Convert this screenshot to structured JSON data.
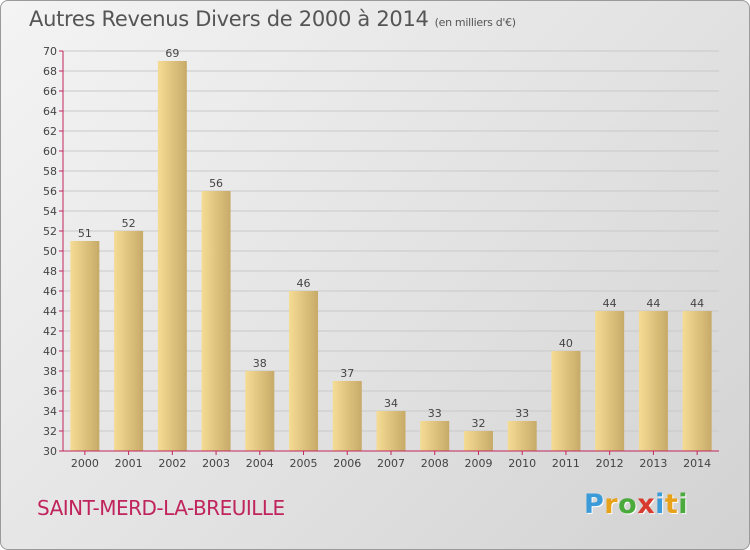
{
  "header": {
    "title": "Autres Revenus Divers de 2000 à 2014",
    "subtitle": "(en milliers d'€)"
  },
  "footer": {
    "commune": "SAINT-MERD-LA-BREUILLE",
    "logo": [
      "P",
      "r",
      "o",
      "x",
      "i",
      "t",
      "i"
    ],
    "logo_colors": [
      "#3a9bd8",
      "#e8a21a",
      "#4aaa3c",
      "#d83a2e",
      "#3a9bd8",
      "#e8a21a",
      "#4aaa3c"
    ]
  },
  "colors": {
    "bar_light": "#f5dc94",
    "bar_dark": "#c7aa68",
    "axis": "#c0245c",
    "grid": "#c9c9c9",
    "text": "#444444"
  },
  "chart_data": {
    "type": "bar",
    "categories": [
      "2000",
      "2001",
      "2002",
      "2003",
      "2004",
      "2005",
      "2006",
      "2007",
      "2008",
      "2009",
      "2010",
      "2011",
      "2012",
      "2013",
      "2014"
    ],
    "values": [
      51,
      52,
      69,
      56,
      38,
      46,
      37,
      34,
      33,
      32,
      33,
      40,
      44,
      44,
      44
    ],
    "title": "Autres Revenus Divers de 2000 à 2014",
    "subtitle": "(en milliers d'€)",
    "ylim": [
      30,
      70
    ],
    "ytick_step": 2,
    "grid": true
  }
}
